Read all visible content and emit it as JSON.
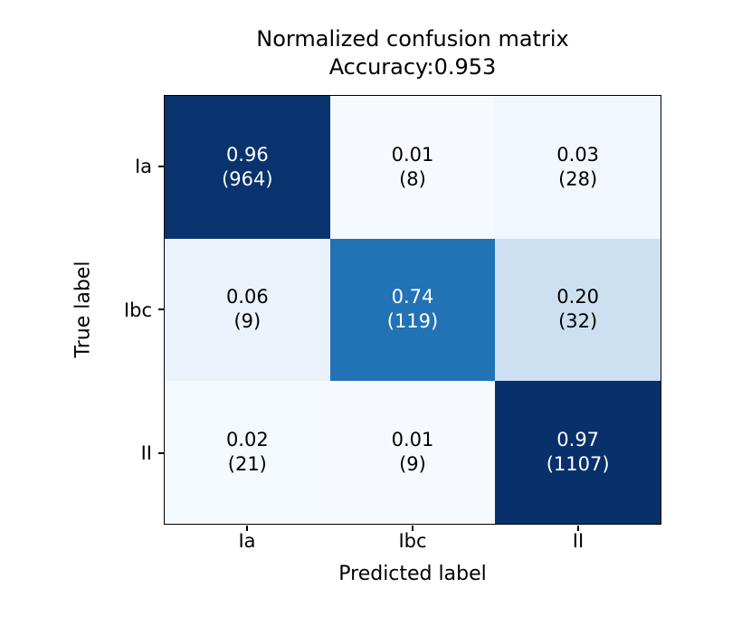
{
  "chart_data": {
    "type": "heatmap",
    "title": "Normalized confusion matrix",
    "subtitle": "Accuracy:0.953",
    "xlabel": "Predicted label",
    "ylabel": "True label",
    "x_tick_labels": [
      "Ia",
      "Ibc",
      "II"
    ],
    "y_tick_labels": [
      "Ia",
      "Ibc",
      "II"
    ],
    "accuracy": "0.953",
    "colormap": "Blues",
    "normalized": [
      [
        0.96,
        0.01,
        0.03
      ],
      [
        0.06,
        0.74,
        0.2
      ],
      [
        0.02,
        0.01,
        0.97
      ]
    ],
    "counts": [
      [
        964,
        8,
        28
      ],
      [
        9,
        119,
        32
      ],
      [
        21,
        9,
        1107
      ]
    ],
    "cells": [
      [
        {
          "value": "0.96",
          "count": "(964)",
          "bg": "#08336e",
          "fg": "#ffffff"
        },
        {
          "value": "0.01",
          "count": "(8)",
          "bg": "#f6fafe",
          "fg": "#000000"
        },
        {
          "value": "0.03",
          "count": "(28)",
          "bg": "#f1f7fd",
          "fg": "#000000"
        }
      ],
      [
        {
          "value": "0.06",
          "count": "(9)",
          "bg": "#eaf2fb",
          "fg": "#000000"
        },
        {
          "value": "0.74",
          "count": "(119)",
          "bg": "#2272b6",
          "fg": "#ffffff"
        },
        {
          "value": "0.20",
          "count": "(32)",
          "bg": "#cde0f1",
          "fg": "#000000"
        }
      ],
      [
        {
          "value": "0.02",
          "count": "(21)",
          "bg": "#f4f9fe",
          "fg": "#000000"
        },
        {
          "value": "0.01",
          "count": "(9)",
          "bg": "#f6fafe",
          "fg": "#000000"
        },
        {
          "value": "0.97",
          "count": "(1107)",
          "bg": "#08306b",
          "fg": "#ffffff"
        }
      ]
    ],
    "axis_color": "#000000",
    "background_color": "#ffffff",
    "legend_position": "none",
    "grid": false
  }
}
